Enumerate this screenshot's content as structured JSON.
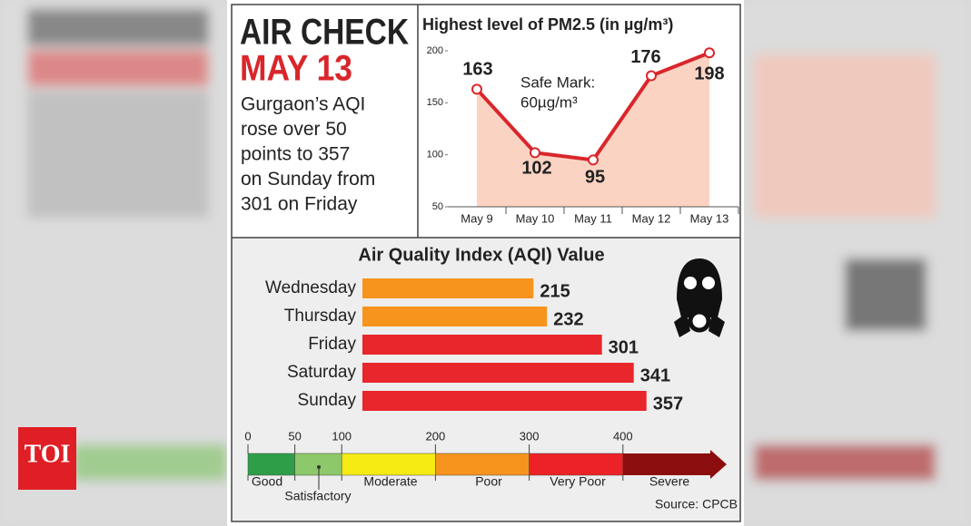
{
  "header": {
    "title": "AIR CHECK",
    "date": "MAY 13",
    "blurb": [
      "Gurgaon’s AQI",
      "rose over 50",
      "points to 357",
      "on Sunday from",
      "301 on Friday"
    ]
  },
  "chart_data": [
    {
      "type": "line",
      "title": "Highest level of PM2.5 (in µg/m³)",
      "categories": [
        "May 9",
        "May 10",
        "May 11",
        "May 12",
        "May 13"
      ],
      "values": [
        163,
        102,
        95,
        176,
        198
      ],
      "color": "#d9262b",
      "area_color": "#fbd3c3",
      "ylim": [
        50,
        200
      ],
      "yticks": [
        50,
        100,
        150,
        200
      ],
      "annotation": [
        "Safe Mark:",
        "60µg/m³"
      ]
    },
    {
      "type": "hbar",
      "title": "Air Quality Index (AQI) Value",
      "categories": [
        "Wednesday",
        "Thursday",
        "Friday",
        "Saturday",
        "Sunday"
      ],
      "values": [
        215,
        232,
        301,
        341,
        357
      ],
      "colors": [
        "#f7941d",
        "#f7941d",
        "#e8262b",
        "#e8262b",
        "#e8262b"
      ]
    }
  ],
  "aqi_scale": {
    "ticks": [
      0,
      50,
      100,
      200,
      300,
      400
    ],
    "bands": [
      {
        "name": "Good",
        "color": "#2e9e48"
      },
      {
        "name": "Satisfactory",
        "color": "#8dc86a"
      },
      {
        "name": "Moderate",
        "color": "#f5eb13"
      },
      {
        "name": "Poor",
        "color": "#f7941d"
      },
      {
        "name": "Very Poor",
        "color": "#ed2227"
      },
      {
        "name": "Severe",
        "color": "#8b0d0d"
      }
    ]
  },
  "source": "Source: CPCB",
  "logo": "TOI"
}
